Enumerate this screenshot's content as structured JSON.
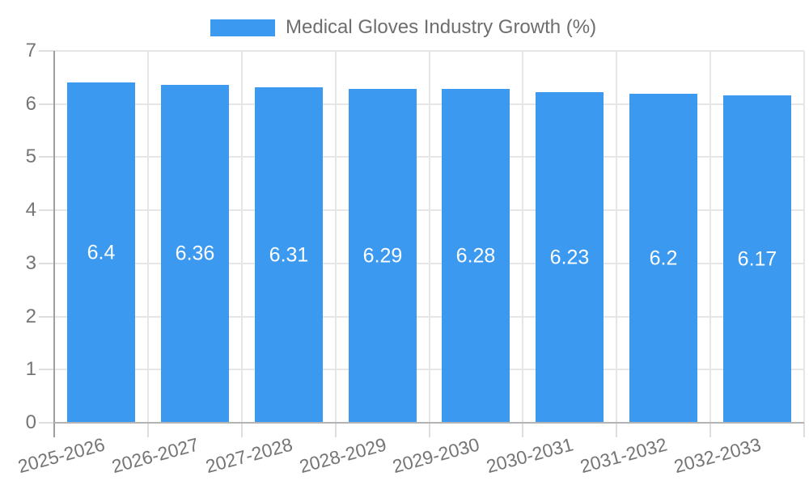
{
  "chart_data": {
    "type": "bar",
    "title": "Medical Gloves Industry Growth (%)",
    "categories": [
      "2025-2026",
      "2026-2027",
      "2027-2028",
      "2028-2029",
      "2029-2030",
      "2030-2031",
      "2031-2032",
      "2032-2033"
    ],
    "values": [
      6.4,
      6.36,
      6.31,
      6.29,
      6.28,
      6.23,
      6.2,
      6.17
    ],
    "value_labels": [
      "6.4",
      "6.36",
      "6.31",
      "6.29",
      "6.28",
      "6.23",
      "6.2",
      "6.17"
    ],
    "xlabel": "",
    "ylabel": "",
    "ylim": [
      0,
      7
    ],
    "yticks": [
      0,
      1,
      2,
      3,
      4,
      5,
      6,
      7
    ],
    "ytick_labels": [
      "0",
      "1",
      "2",
      "3",
      "4",
      "5",
      "6",
      "7"
    ],
    "grid": true,
    "legend_position": "top",
    "x_label_rotation_deg": -15
  },
  "colors": {
    "bar": "#3B99F0",
    "bar_label": "#FFFFFF",
    "axis_text": "#757575",
    "legend_text": "#6E6E6E",
    "gridline": "#E6E6E6",
    "tick": "#DEDEDE",
    "axis_line": "#9E9E9E",
    "baseline": "#B3B3B3",
    "background": "#FFFFFF"
  }
}
